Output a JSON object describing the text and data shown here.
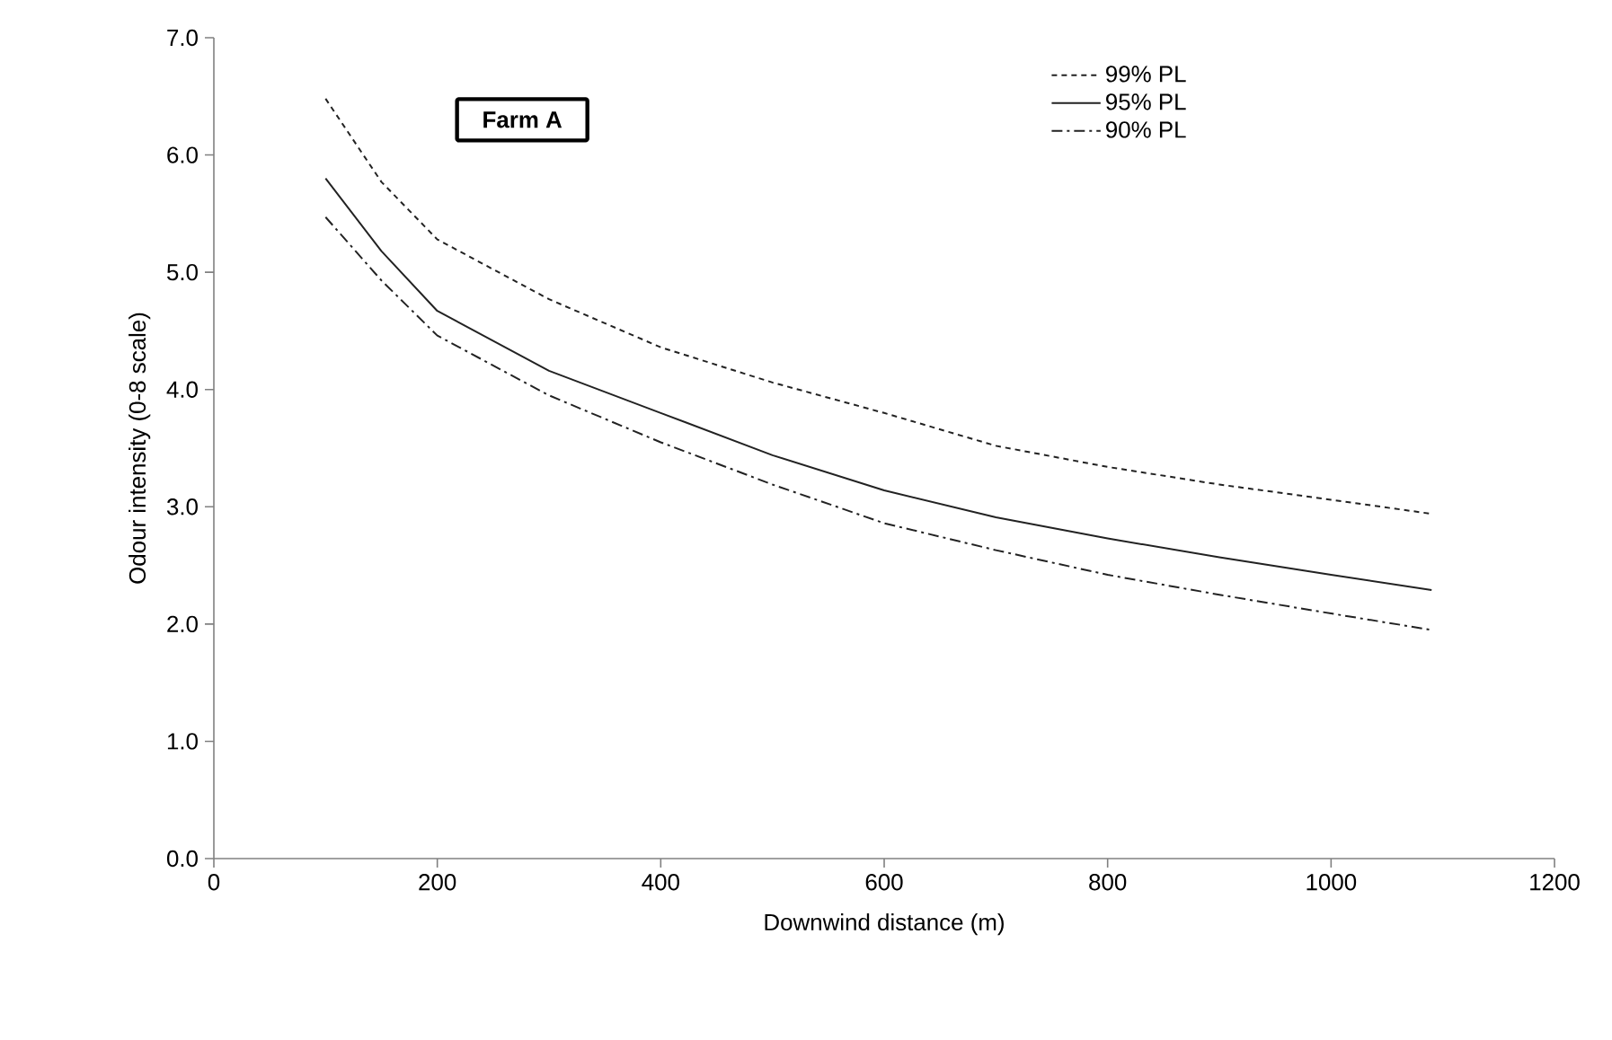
{
  "chart_data": {
    "type": "line",
    "xlabel": "Downwind distance (m)",
    "ylabel": "Odour intensity (0-8 scale)",
    "annotations": [
      "Farm A"
    ],
    "x": [
      100,
      150,
      200,
      300,
      400,
      500,
      600,
      700,
      800,
      900,
      1000,
      1090
    ],
    "series": [
      {
        "name": "99% PL",
        "color": "#222222",
        "line_style": "dashed",
        "values": [
          6.48,
          5.77,
          5.28,
          4.77,
          4.36,
          4.06,
          3.8,
          3.52,
          3.34,
          3.19,
          3.06,
          2.94
        ]
      },
      {
        "name": "95% PL",
        "color": "#222222",
        "line_style": "solid",
        "values": [
          5.8,
          5.18,
          4.67,
          4.16,
          3.8,
          3.44,
          3.14,
          2.91,
          2.73,
          2.57,
          2.42,
          2.29
        ]
      },
      {
        "name": "90% PL",
        "color": "#222222",
        "line_style": "dashdot",
        "values": [
          5.47,
          4.93,
          4.46,
          3.95,
          3.55,
          3.19,
          2.86,
          2.63,
          2.42,
          2.25,
          2.09,
          1.95
        ]
      }
    ],
    "xlim": [
      0,
      1200
    ],
    "xticks": [
      0,
      200,
      400,
      600,
      800,
      1000,
      1200
    ],
    "ylim": [
      0,
      7
    ],
    "yticks": [
      {
        "value": 0,
        "label": "0.0"
      },
      {
        "value": 1,
        "label": "1.0"
      },
      {
        "value": 2,
        "label": "2.0"
      },
      {
        "value": 3,
        "label": "3.0"
      },
      {
        "value": 4,
        "label": "4.0"
      },
      {
        "value": 5,
        "label": "5.0"
      },
      {
        "value": 6,
        "label": "6.0"
      },
      {
        "value": 7,
        "label": "7.0"
      }
    ],
    "grid": false,
    "legend": "top right",
    "marker": "none"
  }
}
